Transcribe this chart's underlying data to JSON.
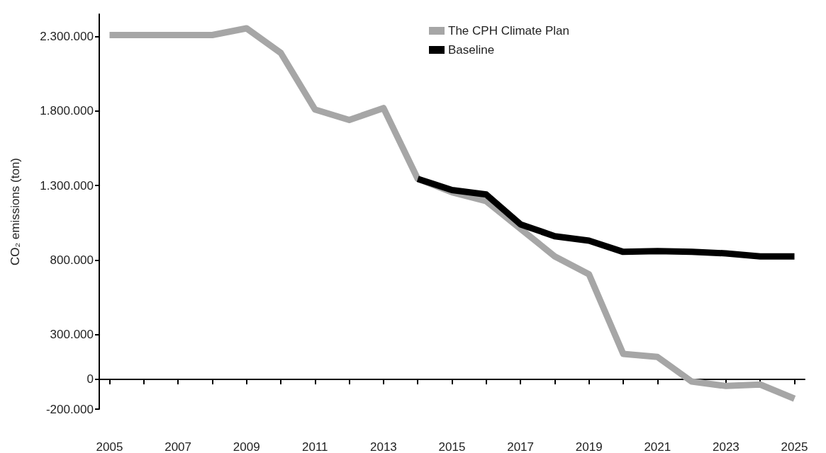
{
  "chart_data": {
    "type": "line",
    "ylabel": "CO₂ emissions (ton)",
    "xlim": [
      2004.7,
      2025.3
    ],
    "xticks": [
      2005,
      {
        "value": 2006,
        "label": null
      },
      2007,
      {
        "value": 2008,
        "label": null
      },
      2009,
      {
        "value": 2010,
        "label": null
      },
      2011,
      {
        "value": 2012,
        "label": null
      },
      2013,
      {
        "value": 2014,
        "label": null
      },
      2015,
      {
        "value": 2016,
        "label": null
      },
      2017,
      {
        "value": 2018,
        "label": null
      },
      2019,
      {
        "value": 2020,
        "label": null
      },
      2021,
      {
        "value": 2022,
        "label": null
      },
      2023,
      {
        "value": 2024,
        "label": null
      },
      2025
    ],
    "ylim": [
      -200000,
      2450000
    ],
    "yticks": [
      {
        "value": -200000,
        "label": "-200.000"
      },
      {
        "value": 0,
        "label": "0"
      },
      {
        "value": 300000,
        "label": "300.000"
      },
      {
        "value": 800000,
        "label": "800.000"
      },
      {
        "value": 1300000,
        "label": "1.300.000"
      },
      {
        "value": 1800000,
        "label": "1.800.000"
      },
      {
        "value": 2300000,
        "label": "2.300.000"
      }
    ],
    "series": [
      {
        "name": "The CPH Climate Plan",
        "color": "#a6a6a6",
        "x": [
          2005,
          2006,
          2007,
          2008,
          2009,
          2010,
          2011,
          2012,
          2013,
          2014,
          2015,
          2016,
          2017,
          2018,
          2019,
          2020,
          2021,
          2022,
          2023,
          2024,
          2025
        ],
        "values": [
          2310000,
          2310000,
          2310000,
          2310000,
          2355000,
          2190000,
          1810000,
          1740000,
          1820000,
          1345000,
          1255000,
          1195000,
          1010000,
          825000,
          705000,
          170000,
          150000,
          -15000,
          -45000,
          -35000,
          -130000
        ]
      },
      {
        "name": "Baseline",
        "color": "#000000",
        "x": [
          2014,
          2015,
          2016,
          2017,
          2018,
          2019,
          2020,
          2021,
          2022,
          2023,
          2024,
          2025
        ],
        "values": [
          1345000,
          1270000,
          1240000,
          1040000,
          960000,
          930000,
          855000,
          860000,
          855000,
          845000,
          825000,
          825000
        ]
      }
    ],
    "legend": "top",
    "marker": "none",
    "line_style": "solid"
  }
}
